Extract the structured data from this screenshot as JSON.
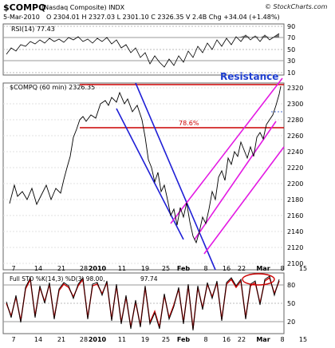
{
  "header": {
    "title": "$COMPQ",
    "title_sub": "(Nasdaq Composite) INDX",
    "date": "5-Mar-2010",
    "quote": "O 2304.01  H 2327.03  L 2301.10  C 2326.35  V 2.4B  Chg +34.04 (+1.48%)",
    "watermark": "© StockCharts.com"
  },
  "rsi_panel": {
    "label": "RSI(14) 77.43",
    "ticks": [
      "90",
      "70",
      "50",
      "30",
      "10"
    ]
  },
  "price_panel": {
    "label": "$COMPQ (60 min) 2326.35",
    "fib_label": "78.6%",
    "resistance_label": "Resistance",
    "yticks": [
      "2320",
      "2300",
      "2280",
      "2260",
      "2240",
      "2220",
      "2200",
      "2180",
      "2160",
      "2140",
      "2120",
      "2100"
    ],
    "xticks": [
      "7",
      "14",
      "21",
      "28",
      "2010",
      "11",
      "19",
      "25",
      "Feb",
      "8",
      "16",
      "22",
      "Mar",
      "8",
      "15"
    ]
  },
  "sto_panel": {
    "label_prefix": "Full STO %K(14,3) %D(3) 98.00,",
    "label_value": "97.74",
    "yticks": [
      "80",
      "50",
      "20"
    ],
    "xticks": [
      "7",
      "14",
      "21",
      "28",
      "2010",
      "11",
      "19",
      "25",
      "Feb",
      "8",
      "16",
      "22",
      "Mar",
      "8",
      "15"
    ]
  },
  "colors": {
    "resistance_line": "#cc0000",
    "down_channel": "#1f1fd6",
    "up_channel": "#e31ae3",
    "price": "#000000",
    "sto_k": "#000000",
    "sto_d": "#cc0000",
    "resistance_text": "#1f3fd0",
    "rsi_fill": "#555555"
  },
  "chart_data": [
    {
      "type": "line",
      "title": "RSI(14) 77.43",
      "ylim": [
        10,
        90
      ],
      "x": [
        "7",
        "14",
        "21",
        "28",
        "2010",
        "11",
        "19",
        "25",
        "Feb",
        "8",
        "16",
        "22",
        "Mar",
        "8"
      ],
      "series": [
        {
          "name": "RSI(14)",
          "values": [
            45,
            60,
            63,
            70,
            60,
            66,
            48,
            35,
            30,
            38,
            55,
            62,
            70,
            77.43
          ]
        }
      ]
    },
    {
      "type": "line",
      "title": "$COMPQ (60 min) 2326.35",
      "ylim": [
        2095,
        2330
      ],
      "x": [
        "7",
        "14",
        "21",
        "28",
        "2010",
        "11",
        "19",
        "25",
        "Feb",
        "8",
        "16",
        "22",
        "Mar",
        "8"
      ],
      "series": [
        {
          "name": "$COMPQ (60 min)",
          "values": [
            2165,
            2200,
            2265,
            2285,
            2300,
            2305,
            2290,
            2230,
            2150,
            2110,
            2160,
            2230,
            2285,
            2326.35
          ]
        }
      ],
      "annotations": [
        "78.6%",
        "Resistance"
      ]
    },
    {
      "type": "line",
      "title": "Full STO %K(14,3) %D(3) 98.00, 97.74",
      "ylim": [
        0,
        100
      ],
      "x": [
        "7",
        "14",
        "21",
        "28",
        "2010",
        "11",
        "19",
        "25",
        "Feb",
        "8",
        "16",
        "22",
        "Mar",
        "8"
      ],
      "series": [
        {
          "name": "%K",
          "values": [
            40,
            30,
            90,
            88,
            85,
            60,
            20,
            15,
            35,
            70,
            85,
            80,
            90,
            98.0
          ]
        },
        {
          "name": "%D",
          "values": [
            42,
            35,
            85,
            88,
            84,
            65,
            28,
            18,
            30,
            62,
            82,
            82,
            88,
            97.74
          ]
        }
      ]
    }
  ]
}
